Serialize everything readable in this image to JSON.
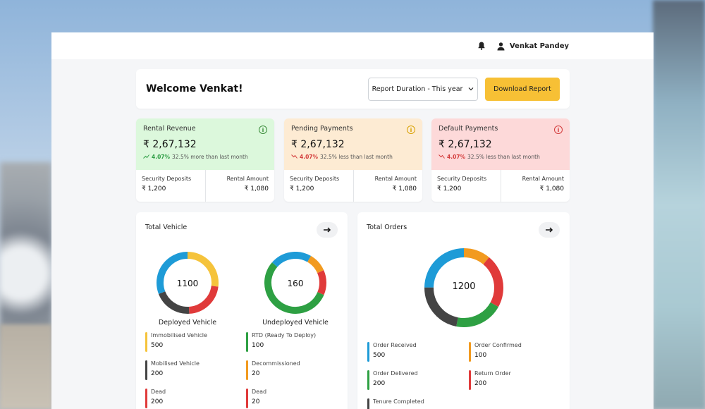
{
  "topbar": {
    "user_name": "Venkat Pandey"
  },
  "welcome": {
    "title": "Welcome Venkat!",
    "duration_label": "Report Duration - This year",
    "download_label": "Download Report"
  },
  "cards": [
    {
      "title": "Rental Revenue",
      "amount": "₹ 2,67,132",
      "pct": "4.07%",
      "change_text": "32.5% more than last month",
      "trend": "up",
      "left_label": "Security Deposits",
      "left_value": "₹ 1,200",
      "right_label": "Rental Amount",
      "right_value": "₹ 1,080",
      "bg": "#dcf8dc",
      "icon_color": "#3a8c3a"
    },
    {
      "title": "Pending Payments",
      "amount": "₹ 2,67,132",
      "pct": "4.07%",
      "change_text": "32.5% less than last month",
      "trend": "down",
      "left_label": "Security Deposits",
      "left_value": "₹ 1,200",
      "right_label": "Rental Amount",
      "right_value": "₹ 1,080",
      "bg": "#fdebd3",
      "icon_color": "#d8a100"
    },
    {
      "title": "Default Payments",
      "amount": "₹ 2,67,132",
      "pct": "4.07%",
      "change_text": "32.5% less than last month",
      "trend": "down",
      "left_label": "Security Deposits",
      "left_value": "₹ 1,200",
      "right_label": "Rental Amount",
      "right_value": "₹ 1,080",
      "bg": "#fdd9d9",
      "icon_color": "#d33b3b"
    }
  ],
  "total_vehicle": {
    "title": "Total Vehicle",
    "deployed": {
      "value": "1100",
      "label": "Deployed Vehicle",
      "segments": [
        {
          "color": "#f5c33b",
          "fraction": 0.27
        },
        {
          "color": "#e03a3a",
          "fraction": 0.22
        },
        {
          "color": "#444444",
          "fraction": 0.2
        },
        {
          "color": "#1e9bd7",
          "fraction": 0.31
        }
      ]
    },
    "undeployed": {
      "value": "160",
      "label": "Undeployed Vehicle",
      "segments": [
        {
          "color": "#f29a1f",
          "fraction": 0.1
        },
        {
          "color": "#e03a3a",
          "fraction": 0.13
        },
        {
          "color": "#2ea043",
          "fraction": 0.55
        },
        {
          "color": "#1e9bd7",
          "fraction": 0.22
        }
      ]
    },
    "legend_left": [
      {
        "name": "Immobilised Vehicle",
        "value": "500",
        "color": "#f5c33b"
      },
      {
        "name": "Mobilised Vehicle",
        "value": "200",
        "color": "#444444"
      },
      {
        "name": "Dead",
        "value": "200",
        "color": "#e03a3a"
      }
    ],
    "legend_right": [
      {
        "name": "RTD (Ready To Deploy)",
        "value": "100",
        "color": "#2ea043"
      },
      {
        "name": "Decommissioned",
        "value": "20",
        "color": "#f29a1f"
      },
      {
        "name": "Dead",
        "value": "20",
        "color": "#e03a3a"
      }
    ]
  },
  "total_orders": {
    "title": "Total Orders",
    "value": "1200",
    "segments": [
      {
        "color": "#f29a1f",
        "fraction": 0.11
      },
      {
        "color": "#e03a3a",
        "fraction": 0.22
      },
      {
        "color": "#2ea043",
        "fraction": 0.2
      },
      {
        "color": "#444444",
        "fraction": 0.22
      },
      {
        "color": "#1e9bd7",
        "fraction": 0.25
      }
    ],
    "legend": [
      {
        "name": "Order Received",
        "value": "500",
        "color": "#1e9bd7"
      },
      {
        "name": "Order Confirmed",
        "value": "100",
        "color": "#f29a1f"
      },
      {
        "name": "Order Delivered",
        "value": "200",
        "color": "#2ea043"
      },
      {
        "name": "Return Order",
        "value": "200",
        "color": "#e03a3a"
      },
      {
        "name": "Tenure Completed",
        "value": "",
        "color": "#444444"
      }
    ]
  }
}
